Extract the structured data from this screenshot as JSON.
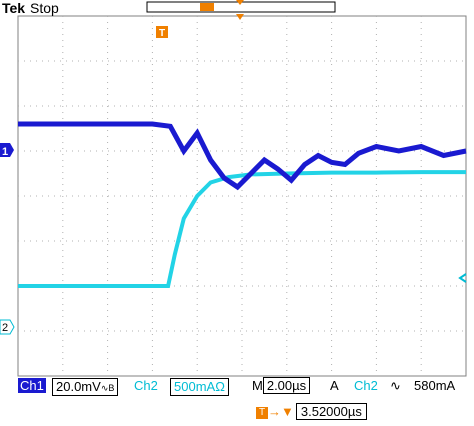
{
  "header": {
    "brand": "Tek",
    "acquisition_state": "Stop"
  },
  "channel_markers": {
    "ch1": "1",
    "ch2": "2",
    "trigger": "T"
  },
  "status_bar": {
    "ch1_label": "Ch1",
    "ch1_scale": "20.0mV",
    "ch1_coupling_icon": "bandwidth-limit-icon",
    "ch2_label": "Ch2",
    "ch2_scale": "500mA",
    "ch2_unit_icon": "ohm-icon",
    "timebase_label": "M",
    "timebase_value": "2.00µs",
    "trigger_mode": "A",
    "trigger_source": "Ch2",
    "trigger_slope_icon": "rising-edge-icon",
    "trigger_level": "580mA"
  },
  "trigger_offset": {
    "icon": "trigger-offset-icon",
    "value": "3.52000µs"
  },
  "colors": {
    "ch1": "#1a1ad0",
    "ch2": "#22d3e6",
    "accent": "#f08000",
    "grid": "#b0b0b0"
  },
  "chart_data": {
    "type": "line",
    "series": [
      {
        "name": "Ch1",
        "x_div": [
          0,
          1,
          2,
          3,
          3.4,
          3.7,
          4.0,
          4.3,
          4.6,
          4.9,
          5.2,
          5.5,
          5.8,
          6.1,
          6.4,
          6.7,
          7.0,
          7.3,
          7.6,
          8.0,
          8.5,
          9.0,
          9.5,
          10
        ],
        "y_div": [
          1.6,
          1.6,
          1.6,
          1.6,
          1.55,
          1.0,
          1.4,
          0.8,
          0.4,
          0.2,
          0.5,
          0.8,
          0.6,
          0.35,
          0.7,
          0.9,
          0.75,
          0.7,
          0.95,
          1.1,
          1.0,
          1.1,
          0.9,
          1.0
        ]
      },
      {
        "name": "Ch2",
        "x_div": [
          0,
          1,
          2,
          3,
          3.35,
          3.5,
          3.7,
          4.0,
          4.3,
          4.7,
          5.2,
          6,
          7,
          8,
          9,
          10
        ],
        "y_div": [
          -2.0,
          -2.0,
          -2.0,
          -2.0,
          -2.0,
          -1.3,
          -0.5,
          0.0,
          0.3,
          0.42,
          0.48,
          0.5,
          0.52,
          0.52,
          0.53,
          0.53
        ]
      }
    ],
    "xlim": [
      0,
      10
    ],
    "ylim": [
      -4,
      4
    ],
    "grid": true
  }
}
